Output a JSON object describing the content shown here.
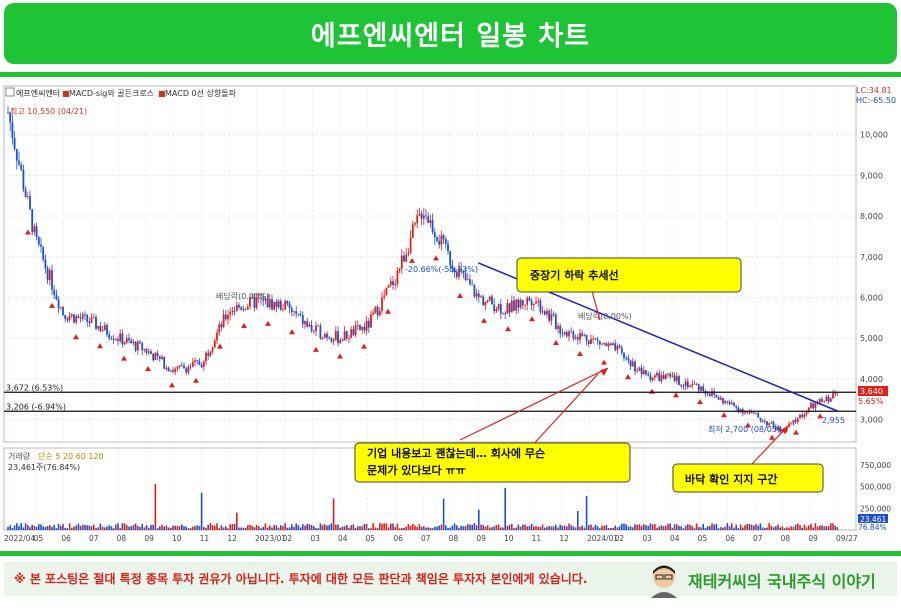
{
  "title": "에프엔씨엔터 일봉 차트",
  "legend": {
    "stock": "에프엔씨엔터",
    "macd1": "MACD-sig와 골든크로스",
    "macd2": "MACD 0선 상향돌파"
  },
  "top_right": {
    "lc": "LC:34.81",
    "hc": "HC:-65.50"
  },
  "annotations": {
    "high": "최고 10,550 (04/21)",
    "low": "최저 2,700 (08/05)",
    "div1": "배당락(0.00%)",
    "div2": "배당락(0.00%)",
    "change": "-20.66%(-55.13%)",
    "last_low": "2,955",
    "level1": "3,672 (6.53%)",
    "level2": "3,206 (-6.94%)"
  },
  "callouts": {
    "trend": "중장기 하락 추세선",
    "news": [
      "기업 내용보고 괜찮는데… 회사에 무슨",
      "문제가 있다보다 ㅠㅠ"
    ],
    "support": "바닥 확인 지지 구간"
  },
  "price_tags": {
    "current": "3,640",
    "pct": "5.65%"
  },
  "volume_panel": {
    "label_prefix": "거래량",
    "label_ma": "단순 5 20 60 120",
    "current": "23,461주(76.84%)"
  },
  "volume_tags": {
    "value": "23,461",
    "pct": "76.84%"
  },
  "chart_data": {
    "type": "candlestick",
    "ylim": [
      2500,
      10900
    ],
    "y_ticks": [
      "10,000",
      "9,000",
      "8,000",
      "7,000",
      "6,000",
      "5,000",
      "4,000",
      "3,000"
    ],
    "volume_ticks": [
      "750,000",
      "500,000",
      "250,000"
    ],
    "x_ticks": [
      "2022/04",
      "05",
      "06",
      "07",
      "08",
      "09",
      "10",
      "11",
      "12",
      "2023/01",
      "02",
      "03",
      "04",
      "05",
      "06",
      "07",
      "08",
      "09",
      "10",
      "11",
      "12",
      "2024/01",
      "02",
      "03",
      "04",
      "05",
      "06",
      "07",
      "08",
      "09",
      "09/27"
    ],
    "close_path": [
      [
        "2022/04",
        10550
      ],
      [
        "2022/05",
        7400
      ],
      [
        "2022/06",
        5600
      ],
      [
        "2022/07",
        5400
      ],
      [
        "2022/08",
        5000
      ],
      [
        "2022/09",
        4700
      ],
      [
        "2022/10",
        4200
      ],
      [
        "2022/11",
        4400
      ],
      [
        "2022/12",
        5700
      ],
      [
        "2023/01",
        5900
      ],
      [
        "2023/02",
        5800
      ],
      [
        "2023/03",
        5200
      ],
      [
        "2023/04",
        5000
      ],
      [
        "2023/05",
        5300
      ],
      [
        "2023/06",
        6500
      ],
      [
        "2023/07",
        8200
      ],
      [
        "2023/08",
        6900
      ],
      [
        "2023/09",
        6000
      ],
      [
        "2023/10",
        5700
      ],
      [
        "2023/11",
        6000
      ],
      [
        "2023/12",
        5200
      ],
      [
        "2024/01",
        5000
      ],
      [
        "2024/02",
        4700
      ],
      [
        "2024/03",
        4100
      ],
      [
        "2024/04",
        4000
      ],
      [
        "2024/05",
        3800
      ],
      [
        "2024/06",
        3400
      ],
      [
        "2024/07",
        3100
      ],
      [
        "2024/08",
        2700
      ],
      [
        "2024/09",
        3300
      ],
      [
        "2024/09/27",
        3640
      ]
    ],
    "horizontal_levels": [
      3672,
      3206
    ],
    "trendline": {
      "from": [
        "2023/09",
        6850
      ],
      "to": [
        "2024/09/27",
        3206
      ]
    }
  }
}
